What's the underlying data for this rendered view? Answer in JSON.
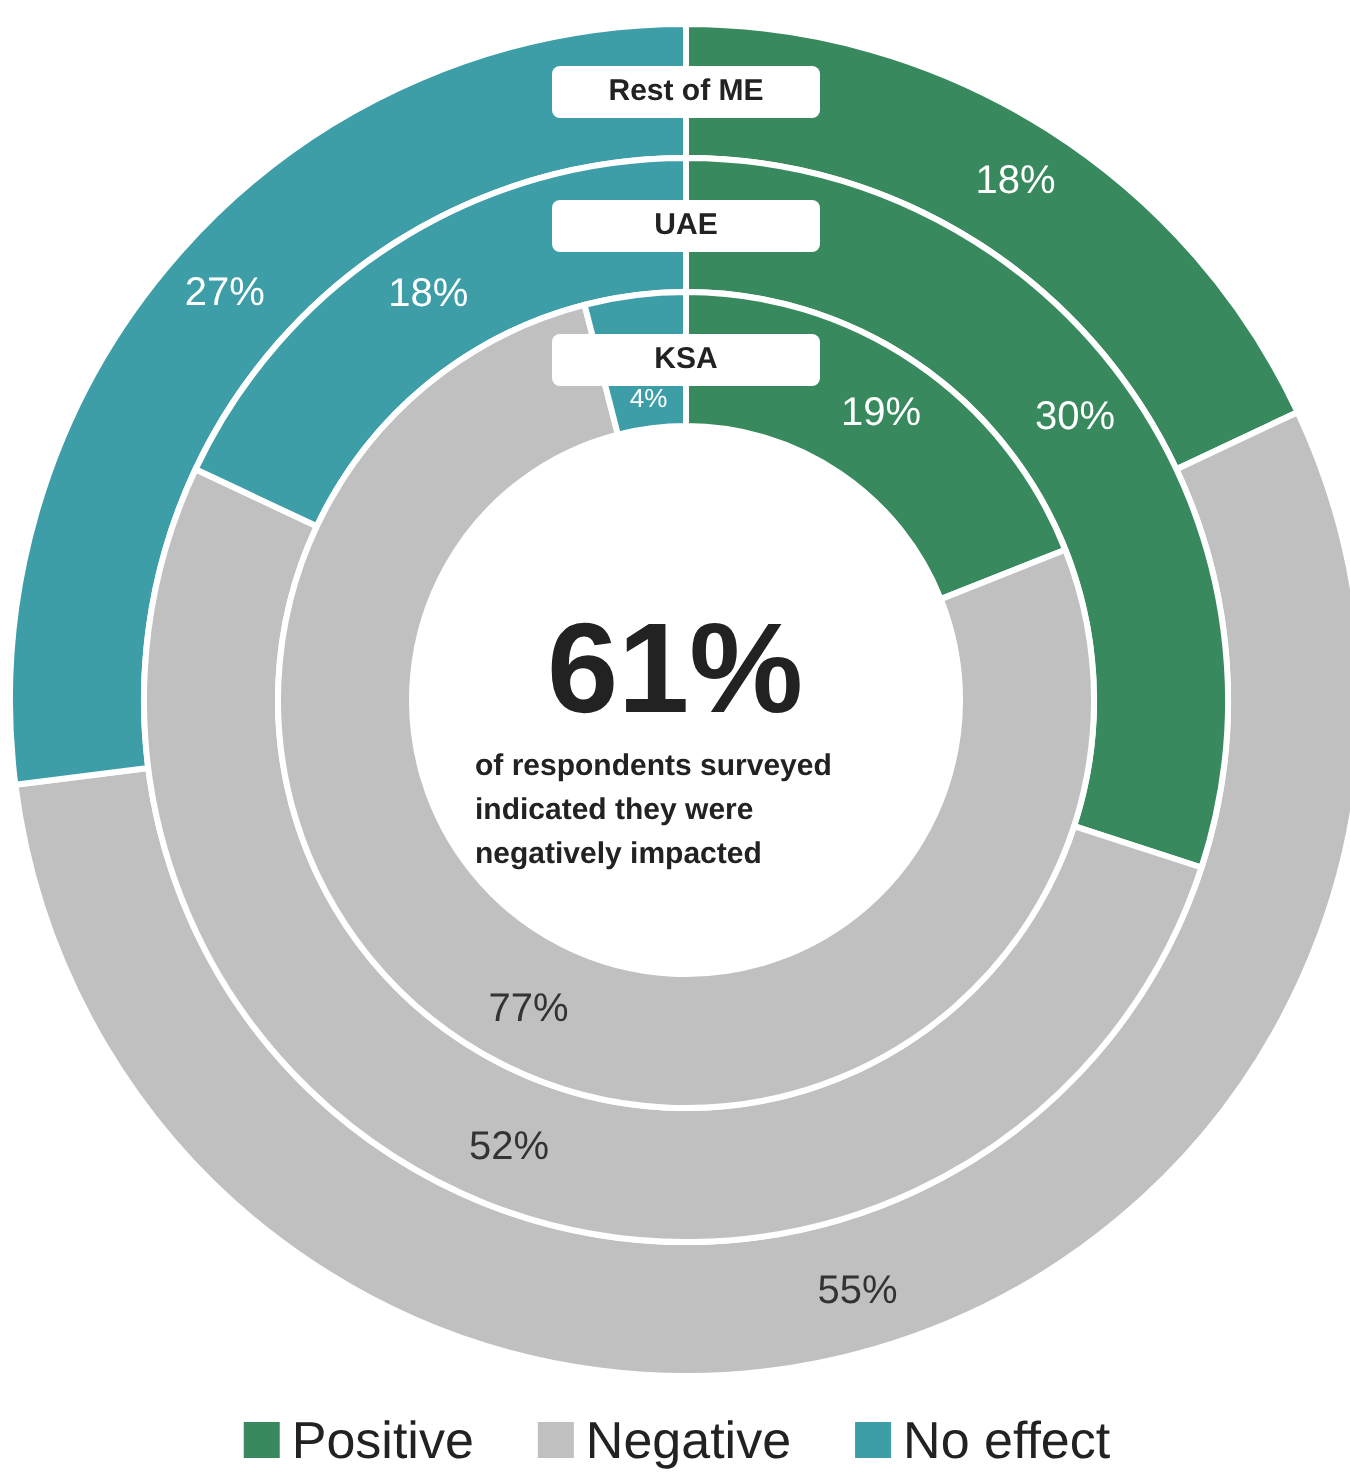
{
  "chart_data": {
    "type": "donut",
    "categories": [
      "Positive",
      "Negative",
      "No effect"
    ],
    "colors": [
      "#388a5e",
      "#c0c0c0",
      "#3e9ea8"
    ],
    "series": [
      {
        "name": "Rest of ME",
        "values": [
          18,
          55,
          27
        ],
        "value_labels": [
          "18%",
          "55%",
          "27%"
        ]
      },
      {
        "name": "UAE",
        "values": [
          30,
          52,
          18
        ],
        "value_labels": [
          "30%",
          "52%",
          "18%"
        ]
      },
      {
        "name": "KSA",
        "values": [
          19,
          77,
          4
        ],
        "value_labels": [
          "19%",
          "77%",
          "4%"
        ]
      }
    ],
    "annotations": [
      "61%",
      "of respondents surveyed indicated they were negatively impacted"
    ],
    "legend": "bottom"
  }
}
